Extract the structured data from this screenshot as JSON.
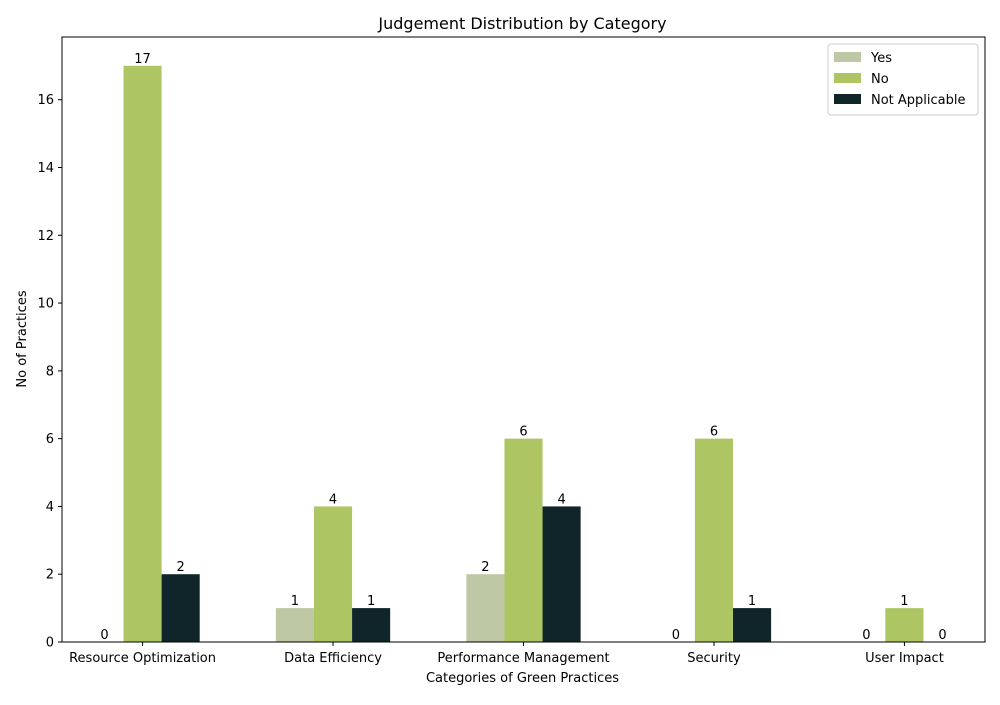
{
  "chart_data": {
    "type": "bar",
    "title": "Judgement Distribution by Category",
    "xlabel": "Categories of Green Practices",
    "ylabel": "No of Practices",
    "categories": [
      "Resource Optimization",
      "Data Efficiency",
      "Performance Management",
      "Security",
      "User Impact"
    ],
    "series": [
      {
        "name": "Yes",
        "color": "#bec8a5",
        "values": [
          0,
          1,
          2,
          0,
          0
        ]
      },
      {
        "name": "No",
        "color": "#adc663",
        "values": [
          17,
          4,
          6,
          6,
          1
        ]
      },
      {
        "name": "Not Applicable",
        "color": "#0f252a",
        "values": [
          2,
          1,
          4,
          1,
          0
        ]
      }
    ],
    "ylim": [
      0,
      17.85
    ],
    "yticks": [
      0,
      2,
      4,
      6,
      8,
      10,
      12,
      14,
      16
    ],
    "grid": false,
    "legend_position": "top-right",
    "data_labels": true
  }
}
